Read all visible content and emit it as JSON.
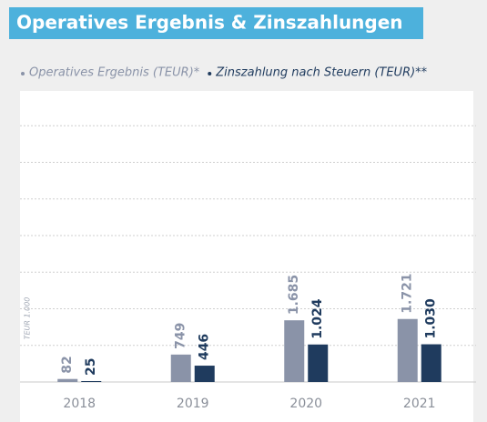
{
  "chart_data": {
    "type": "bar",
    "title": "Operatives Ergebnis & Zinszahlungen",
    "y_axis_label": "TEUR 1.000",
    "categories": [
      "2018",
      "2019",
      "2020",
      "2021"
    ],
    "series": [
      {
        "name": "Operatives Ergebnis (TEUR)*",
        "color": "#8a93a8",
        "values": [
          82,
          749,
          1685,
          1721
        ],
        "value_labels": [
          "82",
          "749",
          "1.685",
          "1.721"
        ]
      },
      {
        "name": "Zinszahlung nach Steuern (TEUR)**",
        "color": "#1f3b5e",
        "values": [
          25,
          446,
          1024,
          1030
        ],
        "value_labels": [
          "25",
          "446",
          "1.024",
          "1.030"
        ]
      }
    ],
    "ylim": [
      0,
      8000
    ],
    "yticks": [
      0,
      1000,
      2000,
      3000,
      4000,
      5000,
      6000,
      7000
    ],
    "grid": true
  }
}
